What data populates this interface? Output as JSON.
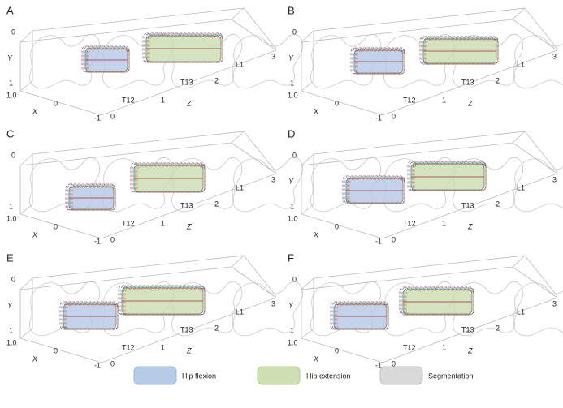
{
  "panels": [
    {
      "label": "A",
      "y_axis": {
        "label": "Y",
        "ticks": [
          "0",
          "1"
        ]
      },
      "x_axis": {
        "label": "X",
        "ticks": [
          "1.0",
          "0",
          "-1"
        ]
      },
      "z_axis": {
        "label": "Z",
        "ticks": [
          "0",
          "1",
          "2",
          "3"
        ]
      },
      "levels": [
        "T12",
        "T13",
        "L1"
      ]
    },
    {
      "label": "B",
      "y_axis": {
        "label": "Y",
        "ticks": [
          "0",
          "1"
        ]
      },
      "x_axis": {
        "label": "X",
        "ticks": [
          "1.0",
          "0",
          "-1"
        ]
      },
      "z_axis": {
        "label": "Z",
        "ticks": [
          "0",
          "1",
          "2",
          "3"
        ]
      },
      "levels": [
        "T12",
        "T13",
        "L1"
      ]
    },
    {
      "label": "C",
      "y_axis": {
        "ticks": [
          "0",
          "1"
        ]
      },
      "x_axis": {
        "label": "X",
        "ticks": [
          "1.0",
          "0",
          "-1"
        ]
      },
      "z_axis": {
        "label": "Z",
        "ticks": [
          "0",
          "1",
          "2",
          "3"
        ]
      },
      "levels": [
        "T12",
        "T13",
        "L1"
      ]
    },
    {
      "label": "D",
      "y_axis": {
        "label": "Y",
        "ticks": [
          "0",
          "1"
        ]
      },
      "x_axis": {
        "label": "X",
        "ticks": [
          "1.0",
          "0",
          "-1"
        ]
      },
      "z_axis": {
        "label": "Z",
        "ticks": [
          "0",
          "1",
          "2",
          "3"
        ]
      },
      "levels": [
        "T12",
        "T13",
        "L1"
      ]
    },
    {
      "label": "E",
      "y_axis": {
        "label": "Y",
        "ticks": [
          "0",
          "1"
        ]
      },
      "x_axis": {
        "label": "X",
        "ticks": [
          "1.0",
          "0",
          "-1"
        ]
      },
      "z_axis": {
        "label": "Z",
        "ticks": [
          "0",
          "1",
          "2",
          "3"
        ]
      },
      "levels": [
        "T12",
        "T13",
        "L1"
      ]
    },
    {
      "label": "F",
      "y_axis": {
        "label": "Y",
        "ticks": [
          "0",
          "1"
        ]
      },
      "x_axis": {
        "label": "X",
        "ticks": [
          "1.0",
          "0",
          "-1"
        ]
      },
      "z_axis": {
        "label": "Z",
        "ticks": [
          "0",
          "1",
          "2",
          "3"
        ]
      },
      "levels": [
        "T12",
        "T13",
        "L1"
      ]
    }
  ],
  "legend": [
    "Hip flexion",
    "Hip extension",
    "Segmentation"
  ]
}
